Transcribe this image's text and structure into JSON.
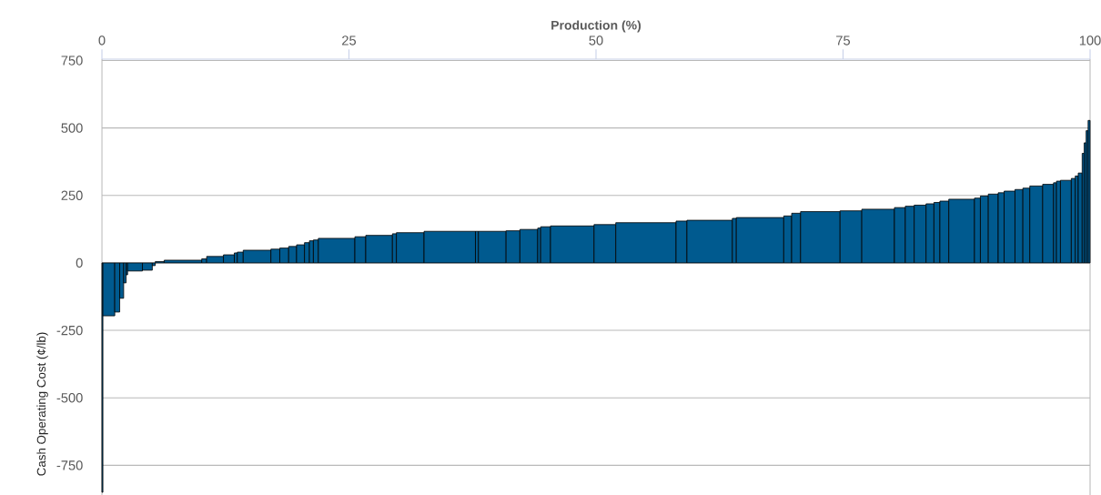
{
  "chart_data": {
    "type": "histogram",
    "xlabel": "Production (%)",
    "ylabel": "Cash Operating Cost (¢/lb)",
    "bins": [
      0,
      0.1,
      1.3,
      1.8,
      2.2,
      2.45,
      2.6,
      4.1,
      5.1,
      5.4,
      6.3,
      10.1,
      10.6,
      12.3,
      13.4,
      13.7,
      14.3,
      17.1,
      18.0,
      18.9,
      19.7,
      20.5,
      21.0,
      21.4,
      21.9,
      25.6,
      26.7,
      29.4,
      29.8,
      32.6,
      37.8,
      38.1,
      40.9,
      42.3,
      44.1,
      44.4,
      45.4,
      49.8,
      52.0,
      58.1,
      59.2,
      63.8,
      64.2,
      69.0,
      69.8,
      70.7,
      74.7,
      76.9,
      80.2,
      81.3,
      82.2,
      83.4,
      84.2,
      84.8,
      85.7,
      88.3,
      88.9,
      89.7,
      90.7,
      91.3,
      92.4,
      93.2,
      93.9,
      95.2,
      96.3,
      96.6,
      97.0,
      98.1,
      98.5,
      98.8,
      99.2,
      99.4,
      99.6,
      99.8,
      100
    ],
    "values": [
      -850,
      -196,
      -182,
      -131,
      -74,
      -44,
      -30,
      -27,
      -10,
      5,
      10,
      15,
      24,
      30,
      37,
      40,
      47,
      51,
      55,
      61,
      67,
      75,
      82,
      85,
      91,
      97,
      102,
      108,
      112,
      117,
      117,
      117,
      119,
      124,
      129,
      134,
      137,
      142,
      149,
      155,
      158,
      165,
      168,
      174,
      184,
      190,
      193,
      199,
      205,
      210,
      214,
      219,
      224,
      229,
      236,
      240,
      248,
      255,
      260,
      266,
      272,
      277,
      285,
      291,
      297,
      303,
      306,
      313,
      322,
      333,
      406,
      445,
      490,
      528
    ],
    "color": "#005a8f",
    "xlim": [
      0,
      100
    ],
    "ylim": [
      -860,
      755
    ],
    "xticks": [
      0,
      25,
      50,
      75,
      100
    ],
    "yticks": [
      -750,
      -500,
      -250,
      0,
      250,
      500,
      750
    ],
    "grid": "y"
  }
}
